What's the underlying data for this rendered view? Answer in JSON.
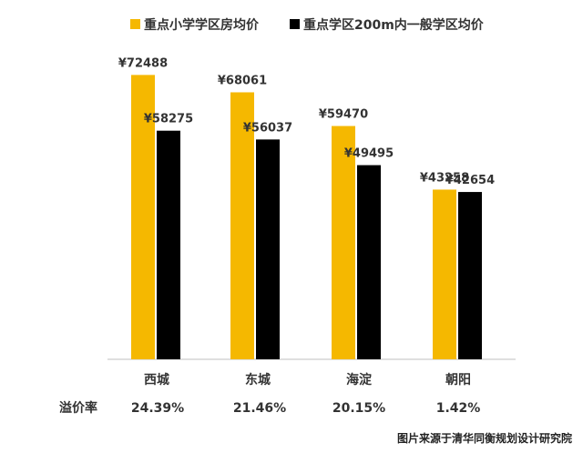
{
  "chart_data": {
    "type": "bar",
    "categories": [
      "西城",
      "东城",
      "海淀",
      "朝阳"
    ],
    "series": [
      {
        "name": "重点小学学区房均价",
        "values": [
          72488,
          68061,
          59470,
          43258
        ],
        "color": "#F5B800"
      },
      {
        "name": "重点学区200m内一般学区均价",
        "values": [
          58275,
          56037,
          49495,
          42654
        ],
        "color": "#000000"
      }
    ],
    "value_labels": [
      [
        "¥72488",
        "¥68061",
        "¥59470",
        "¥43258"
      ],
      [
        "¥58275",
        "¥56037",
        "¥49495",
        "¥42654"
      ]
    ],
    "ylim": [
      0,
      80000
    ],
    "grid": false,
    "legend_position": "top",
    "premium_rate": {
      "label": "溢价率",
      "values": [
        "24.39%",
        "21.46%",
        "20.15%",
        "1.42%"
      ]
    }
  },
  "caption": "图片来源于清华同衡规划设计研究院"
}
